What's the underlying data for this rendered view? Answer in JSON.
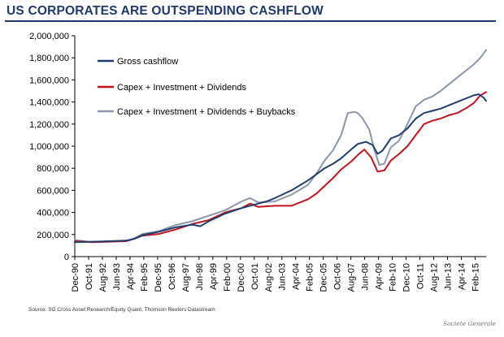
{
  "title": "US CORPORATES ARE OUTSPENDING CASHFLOW",
  "source": "Source: SG Cross Asset Research/Equity Quant, Thomson Reuters Datastream",
  "logo": "Societe Generale",
  "chart_data": {
    "type": "line",
    "title": "US CORPORATES ARE OUTSPENDING CASHFLOW",
    "xlabel": "",
    "ylabel": "",
    "ylim": [
      0,
      2000000
    ],
    "yticks": [
      0,
      200000,
      400000,
      600000,
      800000,
      1000000,
      1200000,
      1400000,
      1600000,
      1800000,
      2000000
    ],
    "ytick_labels": [
      "0",
      "200,000",
      "400,000",
      "600,000",
      "800,000",
      "1,000,000",
      "1,200,000",
      "1,400,000",
      "1,600,000",
      "1,800,000",
      "2,000,000"
    ],
    "xlim": [
      1990.92,
      2015.75
    ],
    "xtick_labels": [
      "Dec-90",
      "Oct-91",
      "Aug-92",
      "Jun-93",
      "Apr-94",
      "Feb-95",
      "Dec-95",
      "Oct-96",
      "Aug-97",
      "Jun-98",
      "Apr-99",
      "Feb-00",
      "Dec-00",
      "Oct-01",
      "Aug-02",
      "Jun-03",
      "Apr-04",
      "Feb-05",
      "Dec-05",
      "Oct-06",
      "Aug-07",
      "Jun-08",
      "Apr-09",
      "Feb-10",
      "Dec-10",
      "Oct-11",
      "Aug-12",
      "Jun-13",
      "Apr-14",
      "Feb-15"
    ],
    "legend_position": "top-left",
    "grid": false,
    "series": [
      {
        "name": "Gross cashflow",
        "color": "#1f3f6e",
        "x": [
          1990.92,
          1992.0,
          1993.0,
          1994.0,
          1994.5,
          1995.0,
          1996.0,
          1997.0,
          1998.0,
          1998.5,
          1999.0,
          2000.0,
          2001.0,
          2002.0,
          2002.5,
          2003.0,
          2004.0,
          2005.0,
          2006.0,
          2006.5,
          2007.0,
          2007.6,
          2008.0,
          2008.5,
          2008.9,
          2009.2,
          2009.5,
          2010.0,
          2010.5,
          2011.0,
          2011.5,
          2012.0,
          2012.5,
          2013.0,
          2013.5,
          2014.0,
          2014.5,
          2015.0,
          2015.3,
          2015.6,
          2015.75
        ],
        "values": [
          130000,
          135000,
          140000,
          145000,
          160000,
          195000,
          225000,
          265000,
          290000,
          275000,
          320000,
          390000,
          440000,
          480000,
          500000,
          530000,
          600000,
          690000,
          800000,
          840000,
          890000,
          970000,
          1020000,
          1040000,
          1010000,
          930000,
          960000,
          1070000,
          1100000,
          1160000,
          1250000,
          1300000,
          1320000,
          1340000,
          1370000,
          1400000,
          1430000,
          1460000,
          1470000,
          1440000,
          1410000
        ]
      },
      {
        "name": "Capex + Investment + Dividends",
        "color": "#c0141e",
        "x": [
          1990.92,
          1992.0,
          1993.0,
          1994.0,
          1994.5,
          1995.0,
          1996.0,
          1997.0,
          1998.0,
          1999.0,
          2000.0,
          2001.0,
          2001.5,
          2002.0,
          2003.0,
          2004.0,
          2005.0,
          2005.5,
          2006.0,
          2006.5,
          2007.0,
          2007.6,
          2008.0,
          2008.4,
          2008.8,
          2009.2,
          2009.6,
          2010.0,
          2010.5,
          2011.0,
          2011.5,
          2012.0,
          2012.5,
          2013.0,
          2013.5,
          2014.0,
          2014.5,
          2015.0,
          2015.4,
          2015.75
        ],
        "values": [
          140000,
          130000,
          135000,
          140000,
          160000,
          190000,
          205000,
          245000,
          295000,
          330000,
          400000,
          440000,
          480000,
          450000,
          460000,
          460000,
          520000,
          570000,
          640000,
          710000,
          790000,
          860000,
          920000,
          970000,
          900000,
          770000,
          780000,
          870000,
          930000,
          1000000,
          1100000,
          1200000,
          1230000,
          1250000,
          1280000,
          1300000,
          1340000,
          1390000,
          1460000,
          1490000
        ]
      },
      {
        "name": "Capex + Investment + Dividends + Buybacks",
        "color": "#8a97ab",
        "x": [
          1990.92,
          1992.0,
          1993.0,
          1994.0,
          1994.5,
          1995.0,
          1996.0,
          1997.0,
          1998.0,
          1999.0,
          2000.0,
          2001.0,
          2001.5,
          2002.0,
          2003.0,
          2004.0,
          2005.0,
          2005.5,
          2006.0,
          2006.5,
          2007.0,
          2007.4,
          2007.8,
          2008.0,
          2008.3,
          2008.7,
          2009.0,
          2009.3,
          2009.6,
          2010.0,
          2010.5,
          2011.0,
          2011.5,
          2012.0,
          2012.5,
          2013.0,
          2013.5,
          2014.0,
          2014.5,
          2015.0,
          2015.4,
          2015.75
        ],
        "values": [
          150000,
          130000,
          140000,
          140000,
          165000,
          205000,
          230000,
          285000,
          320000,
          370000,
          420000,
          500000,
          530000,
          490000,
          500000,
          560000,
          650000,
          750000,
          870000,
          960000,
          1100000,
          1300000,
          1310000,
          1300000,
          1250000,
          1150000,
          970000,
          830000,
          840000,
          990000,
          1050000,
          1200000,
          1360000,
          1420000,
          1450000,
          1500000,
          1560000,
          1620000,
          1680000,
          1740000,
          1800000,
          1870000
        ]
      }
    ]
  }
}
